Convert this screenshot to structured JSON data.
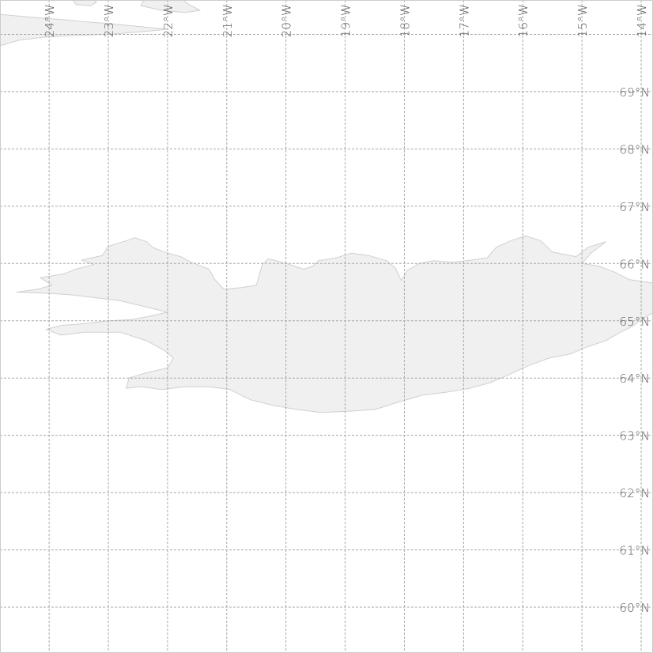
{
  "map": {
    "projection": "equirectangular",
    "lon_range": [
      -24.83,
      -13.8
    ],
    "lat_range": [
      59.2,
      70.6
    ],
    "colors": {
      "background": "#ffffff",
      "land_fill": "#f0f0f0",
      "land_stroke": "#d0d0d0",
      "graticule": "#a8a8a8",
      "label": "#555555",
      "frame": "#cccccc"
    },
    "meridians": [
      {
        "lon": -24,
        "label": "24°W"
      },
      {
        "lon": -23,
        "label": "23°W"
      },
      {
        "lon": -22,
        "label": "22°W"
      },
      {
        "lon": -21,
        "label": "21°W"
      },
      {
        "lon": -20,
        "label": "20°W"
      },
      {
        "lon": -19,
        "label": "19°W"
      },
      {
        "lon": -18,
        "label": "18°W"
      },
      {
        "lon": -17,
        "label": "17°W"
      },
      {
        "lon": -16,
        "label": "16°W"
      },
      {
        "lon": -15,
        "label": "15°W"
      },
      {
        "lon": -14,
        "label": "14°W"
      }
    ],
    "parallels": [
      {
        "lat": 70,
        "label": ""
      },
      {
        "lat": 69,
        "label": "69°N"
      },
      {
        "lat": 68,
        "label": "68°N"
      },
      {
        "lat": 67,
        "label": "67°N"
      },
      {
        "lat": 66,
        "label": "66°N"
      },
      {
        "lat": 65,
        "label": "65°N"
      },
      {
        "lat": 64,
        "label": "64°N"
      },
      {
        "lat": 63,
        "label": "63°N"
      },
      {
        "lat": 62,
        "label": "62°N"
      },
      {
        "lat": 61,
        "label": "61°N"
      },
      {
        "lat": 60,
        "label": "60°N"
      }
    ],
    "landmasses": [
      {
        "name": "iceland",
        "coords": [
          [
            -24.55,
            65.5
          ],
          [
            -24.2,
            65.55
          ],
          [
            -23.95,
            65.62
          ],
          [
            -24.15,
            65.75
          ],
          [
            -23.75,
            65.82
          ],
          [
            -23.55,
            65.9
          ],
          [
            -23.25,
            65.98
          ],
          [
            -23.45,
            66.06
          ],
          [
            -23.1,
            66.14
          ],
          [
            -23.0,
            66.3
          ],
          [
            -22.75,
            66.38
          ],
          [
            -22.55,
            66.45
          ],
          [
            -22.35,
            66.38
          ],
          [
            -22.25,
            66.28
          ],
          [
            -22.05,
            66.2
          ],
          [
            -21.78,
            66.12
          ],
          [
            -21.6,
            66.02
          ],
          [
            -21.3,
            65.9
          ],
          [
            -21.2,
            65.72
          ],
          [
            -21.05,
            65.55
          ],
          [
            -20.75,
            65.58
          ],
          [
            -20.5,
            65.62
          ],
          [
            -20.45,
            65.8
          ],
          [
            -20.4,
            65.98
          ],
          [
            -20.3,
            66.08
          ],
          [
            -20.05,
            66.02
          ],
          [
            -19.85,
            65.95
          ],
          [
            -19.7,
            65.9
          ],
          [
            -19.55,
            65.95
          ],
          [
            -19.45,
            66.05
          ],
          [
            -19.15,
            66.1
          ],
          [
            -18.9,
            66.18
          ],
          [
            -18.6,
            66.14
          ],
          [
            -18.3,
            66.05
          ],
          [
            -18.15,
            65.92
          ],
          [
            -18.05,
            65.7
          ],
          [
            -17.95,
            65.88
          ],
          [
            -17.75,
            66.0
          ],
          [
            -17.5,
            66.05
          ],
          [
            -17.2,
            66.02
          ],
          [
            -16.95,
            66.05
          ],
          [
            -16.6,
            66.1
          ],
          [
            -16.45,
            66.28
          ],
          [
            -16.2,
            66.4
          ],
          [
            -15.95,
            66.48
          ],
          [
            -15.7,
            66.4
          ],
          [
            -15.5,
            66.2
          ],
          [
            -15.1,
            66.12
          ],
          [
            -14.9,
            66.28
          ],
          [
            -14.6,
            66.38
          ],
          [
            -14.85,
            66.18
          ],
          [
            -15.0,
            66.0
          ],
          [
            -14.7,
            65.95
          ],
          [
            -14.45,
            65.85
          ],
          [
            -14.2,
            65.72
          ],
          [
            -13.75,
            65.65
          ],
          [
            -13.65,
            65.45
          ],
          [
            -13.7,
            65.2
          ],
          [
            -13.95,
            65.05
          ],
          [
            -14.15,
            64.9
          ],
          [
            -14.35,
            64.8
          ],
          [
            -14.6,
            64.65
          ],
          [
            -14.9,
            64.55
          ],
          [
            -15.2,
            64.42
          ],
          [
            -15.55,
            64.35
          ],
          [
            -15.9,
            64.22
          ],
          [
            -16.25,
            64.05
          ],
          [
            -16.55,
            63.92
          ],
          [
            -16.9,
            63.82
          ],
          [
            -17.3,
            63.75
          ],
          [
            -17.7,
            63.7
          ],
          [
            -18.1,
            63.58
          ],
          [
            -18.5,
            63.45
          ],
          [
            -18.95,
            63.42
          ],
          [
            -19.4,
            63.4
          ],
          [
            -19.8,
            63.45
          ],
          [
            -20.2,
            63.52
          ],
          [
            -20.6,
            63.62
          ],
          [
            -20.95,
            63.8
          ],
          [
            -21.3,
            63.85
          ],
          [
            -21.7,
            63.85
          ],
          [
            -22.1,
            63.8
          ],
          [
            -22.45,
            63.85
          ],
          [
            -22.7,
            63.82
          ],
          [
            -22.65,
            64.0
          ],
          [
            -22.4,
            64.08
          ],
          [
            -22.0,
            64.18
          ],
          [
            -21.9,
            64.35
          ],
          [
            -22.05,
            64.48
          ],
          [
            -22.35,
            64.65
          ],
          [
            -22.8,
            64.8
          ],
          [
            -23.4,
            64.8
          ],
          [
            -23.8,
            64.75
          ],
          [
            -24.05,
            64.85
          ],
          [
            -23.8,
            64.92
          ],
          [
            -23.4,
            64.95
          ],
          [
            -23.0,
            65.0
          ],
          [
            -22.6,
            65.02
          ],
          [
            -22.3,
            65.08
          ],
          [
            -22.0,
            65.15
          ],
          [
            -22.4,
            65.25
          ],
          [
            -22.8,
            65.35
          ],
          [
            -23.2,
            65.4
          ],
          [
            -23.6,
            65.45
          ],
          [
            -24.0,
            65.48
          ],
          [
            -24.55,
            65.5
          ]
        ]
      },
      {
        "name": "greenland-coast",
        "coords": [
          [
            -24.83,
            70.35
          ],
          [
            -24.3,
            70.3
          ],
          [
            -23.8,
            70.26
          ],
          [
            -23.4,
            70.22
          ],
          [
            -22.9,
            70.18
          ],
          [
            -22.4,
            70.13
          ],
          [
            -22.0,
            70.09
          ],
          [
            -22.4,
            70.05
          ],
          [
            -23.0,
            70.0
          ],
          [
            -23.6,
            69.98
          ],
          [
            -24.1,
            69.95
          ],
          [
            -24.5,
            69.9
          ],
          [
            -24.83,
            69.8
          ]
        ]
      },
      {
        "name": "greenland-north-a",
        "coords": [
          [
            -23.6,
            70.6
          ],
          [
            -23.55,
            70.52
          ],
          [
            -23.3,
            70.5
          ],
          [
            -23.2,
            70.56
          ],
          [
            -23.25,
            70.6
          ]
        ]
      },
      {
        "name": "greenland-north-b",
        "coords": [
          [
            -22.4,
            70.6
          ],
          [
            -22.45,
            70.5
          ],
          [
            -22.1,
            70.42
          ],
          [
            -21.7,
            70.38
          ],
          [
            -21.45,
            70.42
          ],
          [
            -21.6,
            70.5
          ],
          [
            -21.75,
            70.6
          ]
        ]
      }
    ]
  }
}
